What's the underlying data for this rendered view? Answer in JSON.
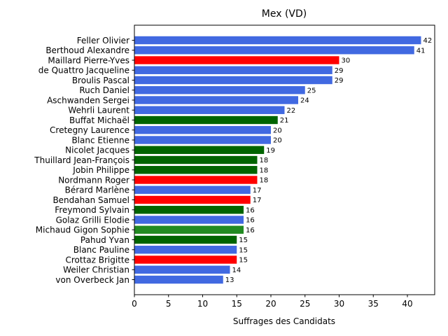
{
  "chart_data": {
    "type": "bar",
    "orientation": "horizontal",
    "title": "Mex (VD)",
    "xlabel": "Suffrages des Candidats",
    "ylabel": "",
    "xlim": [
      0,
      44
    ],
    "xticks": [
      "0",
      "5",
      "10",
      "15",
      "20",
      "25",
      "30",
      "35",
      "40"
    ],
    "grid": false,
    "categories": [
      "Feller Olivier",
      "Berthoud Alexandre",
      "Maillard Pierre-Yves",
      "de Quattro Jacqueline",
      "Broulis Pascal",
      "Ruch Daniel",
      "Aschwanden Sergei",
      "Wehrli Laurent",
      "Buffat Michaël",
      "Cretegny Laurence",
      "Blanc Etienne",
      "Nicolet Jacques",
      "Thuillard Jean-François",
      "Jobin Philippe",
      "Nordmann Roger",
      "Bérard Marlène",
      "Bendahan Samuel",
      "Freymond Sylvain",
      "Golaz Grilli Elodie",
      "Michaud Gigon Sophie",
      "Pahud Yvan",
      "Blanc Pauline",
      "Crottaz Brigitte",
      "Weiler Christian",
      "von Overbeck Jan"
    ],
    "values": [
      42,
      41,
      30,
      29,
      29,
      25,
      24,
      22,
      21,
      20,
      20,
      19,
      18,
      18,
      18,
      17,
      17,
      16,
      16,
      16,
      15,
      15,
      15,
      14,
      13
    ],
    "value_labels": [
      "42",
      "41",
      "30",
      "29",
      "29",
      "25",
      "24",
      "22",
      "21",
      "20",
      "20",
      "19",
      "18",
      "18",
      "18",
      "17",
      "17",
      "16",
      "16",
      "16",
      "15",
      "15",
      "15",
      "14",
      "13"
    ],
    "colors": [
      "#4169e1",
      "#4169e1",
      "#ff0000",
      "#4169e1",
      "#4169e1",
      "#4169e1",
      "#4169e1",
      "#4169e1",
      "#006400",
      "#4169e1",
      "#4169e1",
      "#006400",
      "#006400",
      "#006400",
      "#ff0000",
      "#4169e1",
      "#ff0000",
      "#006400",
      "#4169e1",
      "#228b22",
      "#006400",
      "#4169e1",
      "#ff0000",
      "#4169e1",
      "#4169e1"
    ]
  }
}
